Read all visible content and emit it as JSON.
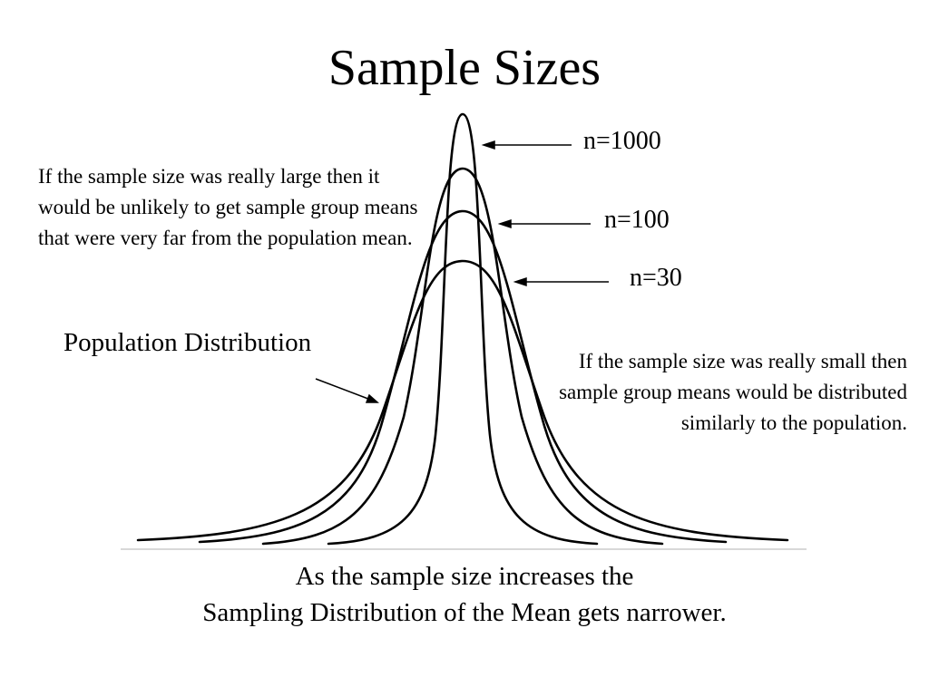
{
  "title": "Sample Sizes",
  "curves": [
    {
      "id": "population",
      "label": "Population Distribution"
    },
    {
      "id": "n30",
      "label": "n=30"
    },
    {
      "id": "n100",
      "label": "n=100"
    },
    {
      "id": "n1000",
      "label": "n=1000"
    }
  ],
  "labels": {
    "n1000": "n=1000",
    "n100": "n=100",
    "n30": "n=30",
    "population": "Population Distribution"
  },
  "notes": {
    "large_sample": "If the sample size was really large then it would be unlikely to get sample group means that were very far from the population mean.",
    "small_sample": "If the sample size was really small then sample group means would be distributed similarly to the population."
  },
  "caption": {
    "line1": "As the sample size increases the",
    "line2": "Sampling Distribution of the Mean gets narrower."
  },
  "colors": {
    "ink": "#000000",
    "baseline": "#cccccc",
    "background": "#ffffff"
  }
}
